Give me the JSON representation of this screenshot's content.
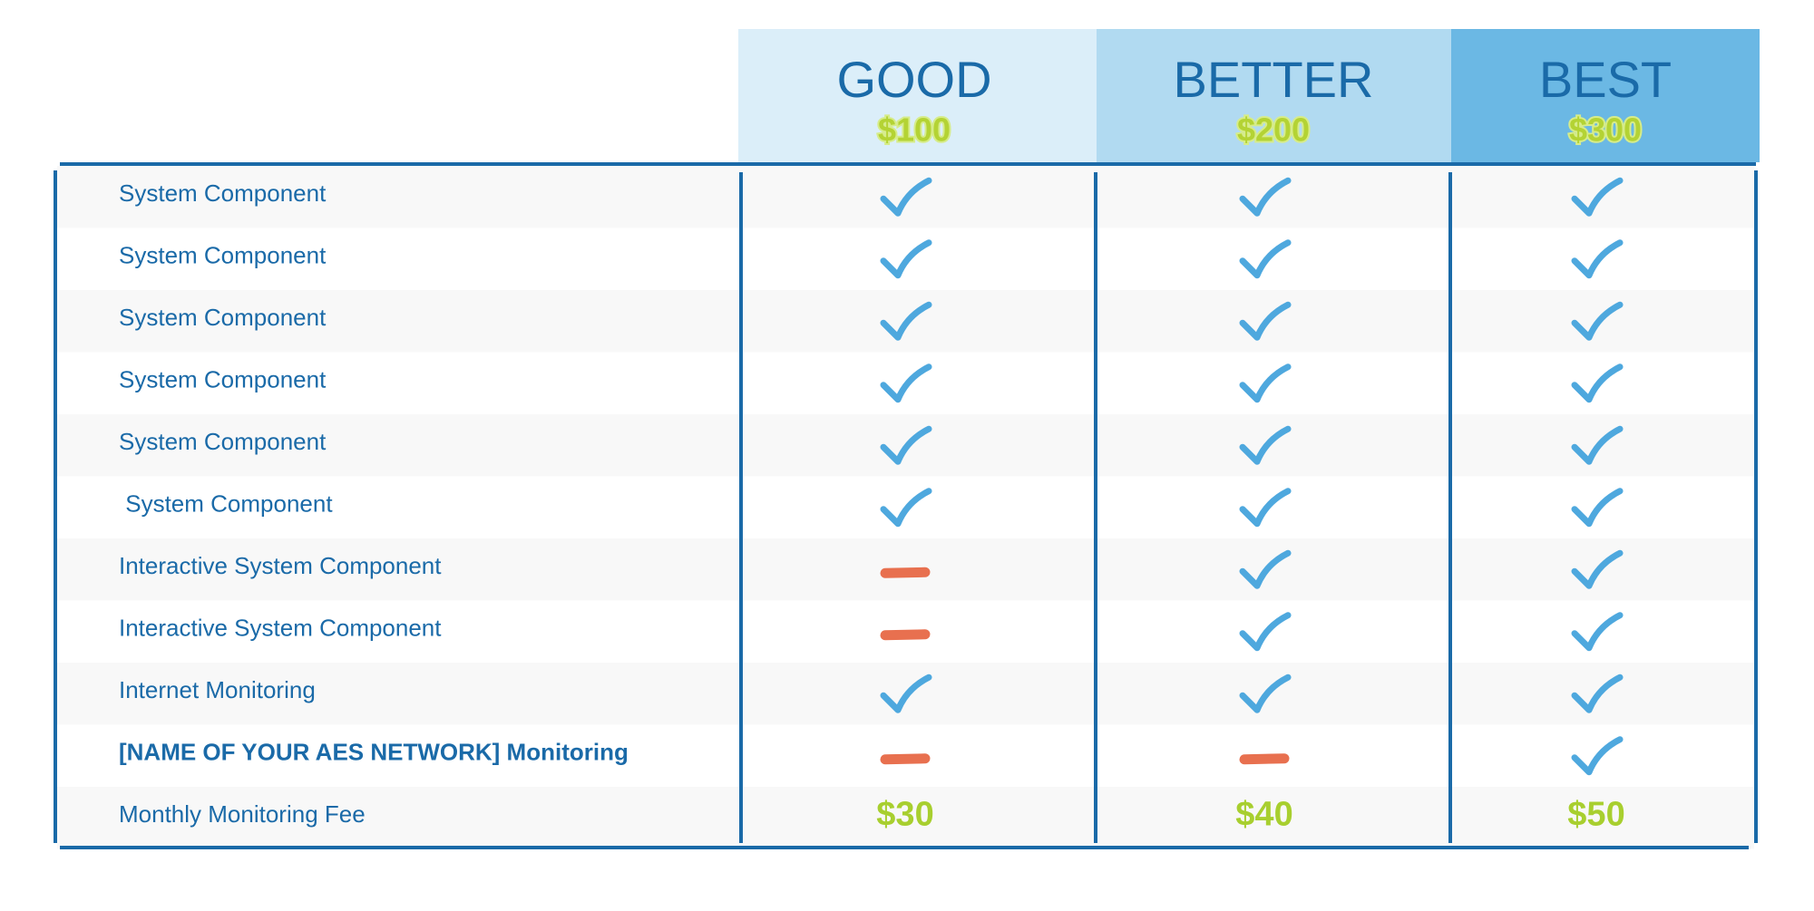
{
  "plans": [
    {
      "name": "GOOD",
      "price": "$100"
    },
    {
      "name": "BETTER",
      "price": "$200"
    },
    {
      "name": "BEST",
      "price": "$300"
    }
  ],
  "rows": [
    {
      "label": "System Component",
      "cells": [
        true,
        true,
        true
      ]
    },
    {
      "label": "System Component",
      "cells": [
        true,
        true,
        true
      ]
    },
    {
      "label": "System Component",
      "cells": [
        true,
        true,
        true
      ]
    },
    {
      "label": "System Component",
      "cells": [
        true,
        true,
        true
      ]
    },
    {
      "label": "System Component",
      "cells": [
        true,
        true,
        true
      ]
    },
    {
      "label": " System Component",
      "cells": [
        true,
        true,
        true
      ]
    },
    {
      "label": "Interactive System Component",
      "cells": [
        false,
        true,
        true
      ]
    },
    {
      "label": "Interactive System Component",
      "cells": [
        false,
        true,
        true
      ]
    },
    {
      "label": "Internet Monitoring",
      "cells": [
        true,
        true,
        true
      ]
    },
    {
      "label": "[NAME OF YOUR AES NETWORK] Monitoring",
      "cells": [
        false,
        false,
        true
      ],
      "bold": true
    },
    {
      "label": "Monthly Monitoring Fee",
      "cells": [
        "$30",
        "$40",
        "$50"
      ]
    }
  ]
}
